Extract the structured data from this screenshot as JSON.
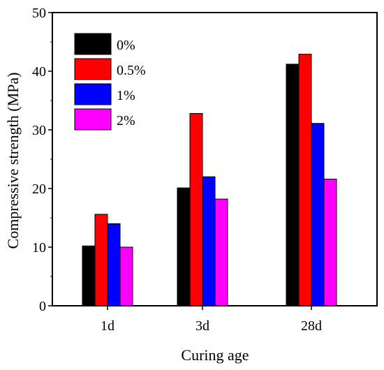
{
  "chart_data": {
    "type": "bar",
    "title": "",
    "xlabel": "Curing age",
    "ylabel": "Compressive strength (MPa)",
    "categories": [
      "1d",
      "3d",
      "28d"
    ],
    "ylim": [
      0,
      50
    ],
    "yticks": [
      0,
      10,
      20,
      30,
      40,
      50
    ],
    "grid": false,
    "legend_position": "top-left",
    "series": [
      {
        "name": "0%",
        "color": "#000000",
        "values": [
          10.2,
          20.1,
          41.2
        ]
      },
      {
        "name": "0.5%",
        "color": "#ff0000",
        "values": [
          15.6,
          32.8,
          42.9
        ]
      },
      {
        "name": "1%",
        "color": "#0000ff",
        "values": [
          14.0,
          22.0,
          31.1
        ]
      },
      {
        "name": "2%",
        "color": "#ff00ff",
        "values": [
          10.0,
          18.2,
          21.6
        ]
      }
    ]
  }
}
